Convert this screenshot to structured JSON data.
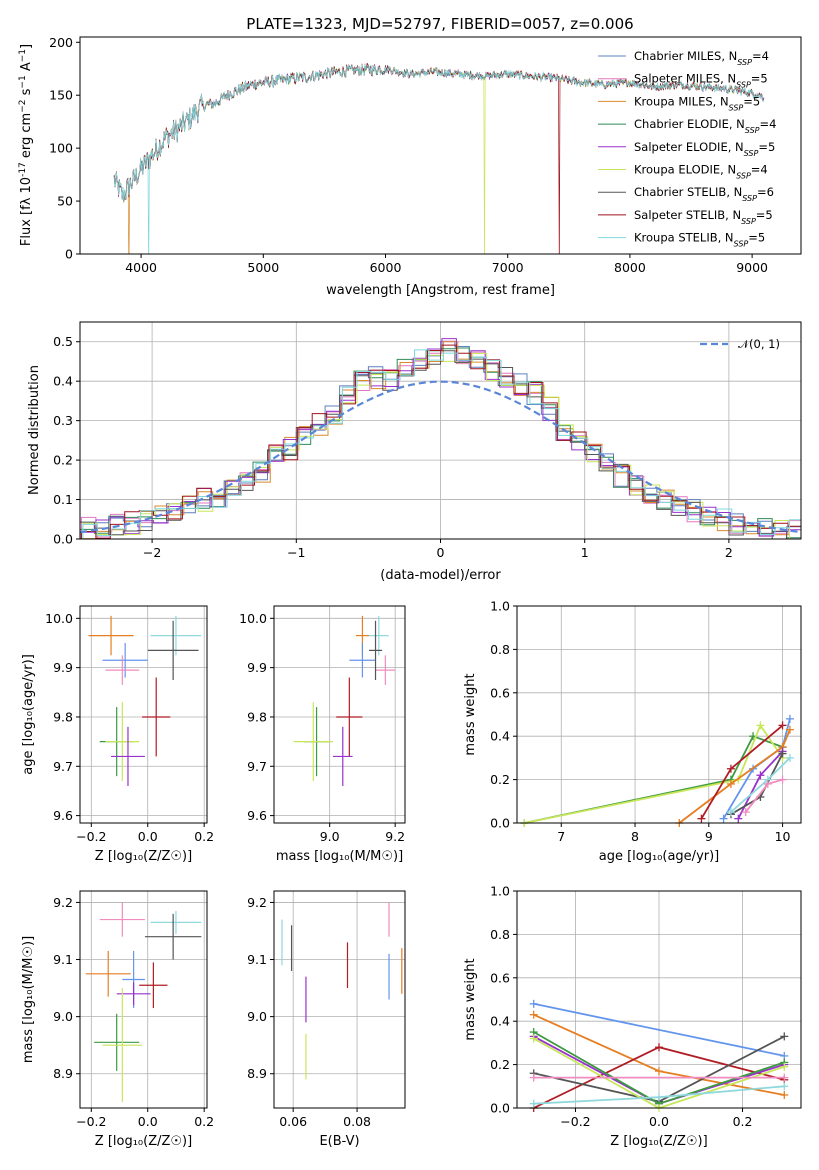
{
  "title": "PLATE=1323, MJD=52797, FIBERID=0057, z=0.006",
  "panels": {
    "spectrum": {
      "xlabel": "wavelength [Angstrom, rest frame]",
      "ylabel_main": "Flux [f",
      "ylabel_unit": "10",
      "ylabel_exp": "-17",
      "ylabel_rest": " erg cm",
      "xticks": [
        "4000",
        "5000",
        "6000",
        "7000",
        "8000",
        "9000"
      ],
      "yticks": [
        "0",
        "50",
        "100",
        "150",
        "200"
      ]
    },
    "residuals": {
      "xlabel": "(data-model)/error",
      "ylabel": "Normed distribution",
      "legend": "𝒩(0, 1)",
      "xticks": [
        "−2",
        "−1",
        "0",
        "1",
        "2"
      ],
      "yticks": [
        "0.0",
        "0.1",
        "0.2",
        "0.3",
        "0.4",
        "0.5"
      ]
    },
    "z_age": {
      "xlabel": "Z [log₁₀(Z/Z☉)]",
      "ylabel": "age  [log₁₀(age/yr)]",
      "xticks": [
        "−0.2",
        "0.0",
        "0.2"
      ],
      "yticks": [
        "9.6",
        "9.7",
        "9.8",
        "9.9",
        "10.0"
      ]
    },
    "mass_age": {
      "xlabel": "mass [log₁₀(M/M☉)]",
      "xticks": [
        "9.0",
        "9.2"
      ],
      "yticks": [
        "9.6",
        "9.7",
        "9.8",
        "9.9",
        "10.0"
      ]
    },
    "age_weight": {
      "xlabel": "age  [log₁₀(age/yr)]",
      "ylabel": "mass weight",
      "xticks": [
        "7",
        "8",
        "9",
        "10"
      ],
      "yticks": [
        "0.0",
        "0.2",
        "0.4",
        "0.6",
        "0.8",
        "1.0"
      ]
    },
    "z_mass": {
      "xlabel": "Z [log₁₀(Z/Z☉)]",
      "ylabel": "mass [log₁₀(M/M☉)]",
      "xticks": [
        "−0.2",
        "0.0",
        "0.2"
      ],
      "yticks": [
        "8.9",
        "9.0",
        "9.1",
        "9.2"
      ]
    },
    "ebv_mass": {
      "xlabel": "E(B-V)",
      "xticks": [
        "0.06",
        "0.08"
      ],
      "yticks": [
        "8.9",
        "9.0",
        "9.1",
        "9.2"
      ]
    },
    "z_weight": {
      "xlabel": "Z [log₁₀(Z/Z☉)]",
      "ylabel": "mass weight",
      "xticks": [
        "−0.2",
        "0.0",
        "0.2"
      ],
      "yticks": [
        "0.0",
        "0.2",
        "0.4",
        "0.6",
        "0.8",
        "1.0"
      ]
    }
  },
  "chart_data": [
    {
      "type": "line",
      "panel": "spectrum",
      "xlabel": "wavelength [Angstrom, rest frame]",
      "ylabel": "Flux [fλ 10^-17 erg cm^-2 s^-1 A^-1]",
      "xlim": [
        3500,
        9400
      ],
      "ylim": [
        0,
        205
      ],
      "envelope": {
        "wavelength": [
          3780,
          3850,
          3950,
          4000,
          4100,
          4200,
          4300,
          4400,
          4500,
          4600,
          4700,
          4800,
          4900,
          5000,
          5200,
          5400,
          5600,
          5800,
          6000,
          6200,
          6400,
          6600,
          6800,
          7000,
          7200,
          7400,
          7600,
          7800,
          8000,
          8200,
          8400,
          8600,
          8800,
          9000,
          9100
        ],
        "flux": [
          70,
          55,
          72,
          80,
          95,
          110,
          118,
          128,
          140,
          142,
          150,
          155,
          160,
          162,
          165,
          168,
          172,
          174,
          175,
          170,
          172,
          170,
          168,
          170,
          168,
          166,
          162,
          160,
          162,
          158,
          160,
          158,
          156,
          152,
          148
        ]
      },
      "dropouts": [
        {
          "model": "Kroupa ELODIE",
          "wavelength": 6810
        },
        {
          "model": "Salpeter STELIB",
          "wavelength": 7420
        },
        {
          "model": "Kroupa MILES",
          "wavelength": 3900
        },
        {
          "model": "Kroupa STELIB",
          "wavelength": 4060
        }
      ],
      "legend": [
        {
          "name": "Chabrier MILES",
          "nssp": "4",
          "color": "#5f7fbf"
        },
        {
          "name": "Salpeter MILES",
          "nssp": "5",
          "color": "#e377c2"
        },
        {
          "name": "Kroupa MILES",
          "nssp": "5",
          "color": "#d88a2e"
        },
        {
          "name": "Chabrier ELODIE",
          "nssp": "4",
          "color": "#2e8b57"
        },
        {
          "name": "Salpeter ELODIE",
          "nssp": "5",
          "color": "#9932cc"
        },
        {
          "name": "Kroupa ELODIE",
          "nssp": "4",
          "color": "#c8e65a"
        },
        {
          "name": "Chabrier STELIB",
          "nssp": "6",
          "color": "#555555"
        },
        {
          "name": "Salpeter STELIB",
          "nssp": "5",
          "color": "#a0141e"
        },
        {
          "name": "Kroupa STELIB",
          "nssp": "5",
          "color": "#7fd8de"
        }
      ]
    },
    {
      "type": "area",
      "panel": "residuals",
      "xlim": [
        -2.5,
        2.5
      ],
      "ylim": [
        0,
        0.55
      ],
      "grid": true,
      "legend_position": "top-right",
      "histogram_bins": [
        -2.5,
        -2.4,
        -2.3,
        -2.2,
        -2.1,
        -2.0,
        -1.9,
        -1.8,
        -1.7,
        -1.6,
        -1.5,
        -1.4,
        -1.3,
        -1.2,
        -1.1,
        -1.0,
        -0.9,
        -0.8,
        -0.7,
        -0.6,
        -0.5,
        -0.4,
        -0.3,
        -0.2,
        -0.1,
        0.0,
        0.1,
        0.2,
        0.3,
        0.4,
        0.5,
        0.6,
        0.7,
        0.8,
        0.9,
        1.0,
        1.1,
        1.2,
        1.3,
        1.4,
        1.5,
        1.6,
        1.7,
        1.8,
        1.9,
        2.0,
        2.1,
        2.2,
        2.3,
        2.4
      ],
      "histogram_mean": [
        0.03,
        0.03,
        0.04,
        0.04,
        0.05,
        0.06,
        0.07,
        0.09,
        0.1,
        0.1,
        0.12,
        0.15,
        0.17,
        0.21,
        0.23,
        0.26,
        0.29,
        0.31,
        0.36,
        0.4,
        0.41,
        0.4,
        0.44,
        0.45,
        0.46,
        0.48,
        0.47,
        0.46,
        0.43,
        0.41,
        0.39,
        0.37,
        0.33,
        0.27,
        0.25,
        0.22,
        0.19,
        0.16,
        0.14,
        0.12,
        0.1,
        0.08,
        0.07,
        0.06,
        0.05,
        0.04,
        0.03,
        0.03,
        0.02,
        0.02
      ],
      "gaussian": {
        "name": "𝒩(0, 1)",
        "mu": 0,
        "sigma": 1
      }
    },
    {
      "type": "scatter",
      "panel": "z_age",
      "xlim": [
        -0.24,
        0.21
      ],
      "ylim": [
        9.585,
        10.025
      ],
      "points": [
        {
          "x": -0.13,
          "y": 9.965,
          "xerr": 0.08,
          "yerr": 0.04,
          "color": "#e67e22"
        },
        {
          "x": -0.08,
          "y": 9.915,
          "xerr": 0.08,
          "yerr": 0.035,
          "color": "#6495ed"
        },
        {
          "x": -0.09,
          "y": 9.895,
          "xerr": 0.06,
          "yerr": 0.03,
          "color": "#f08cbf"
        },
        {
          "x": 0.1,
          "y": 9.965,
          "xerr": 0.09,
          "yerr": 0.04,
          "color": "#8fd8dc"
        },
        {
          "x": 0.09,
          "y": 9.935,
          "xerr": 0.09,
          "yerr": 0.06,
          "color": "#555555"
        },
        {
          "x": 0.03,
          "y": 9.8,
          "xerr": 0.05,
          "yerr": 0.08,
          "color": "#b01c24"
        },
        {
          "x": -0.11,
          "y": 9.75,
          "xerr": 0.06,
          "yerr": 0.07,
          "color": "#3d9a40"
        },
        {
          "x": -0.09,
          "y": 9.75,
          "xerr": 0.06,
          "yerr": 0.08,
          "color": "#c8e65a"
        },
        {
          "x": -0.07,
          "y": 9.72,
          "xerr": 0.06,
          "yerr": 0.06,
          "color": "#9932cc"
        }
      ]
    },
    {
      "type": "scatter",
      "panel": "mass_age",
      "xlim": [
        8.83,
        9.23
      ],
      "ylim": [
        9.585,
        10.025
      ],
      "points": [
        {
          "x": 9.1,
          "y": 9.965,
          "xerr": 0.02,
          "yerr": 0.04,
          "color": "#e67e22"
        },
        {
          "x": 9.1,
          "y": 9.915,
          "xerr": 0.04,
          "yerr": 0.035,
          "color": "#6495ed"
        },
        {
          "x": 9.17,
          "y": 9.895,
          "xerr": 0.03,
          "yerr": 0.03,
          "color": "#f08cbf"
        },
        {
          "x": 9.15,
          "y": 9.965,
          "xerr": 0.03,
          "yerr": 0.04,
          "color": "#8fd8dc"
        },
        {
          "x": 9.14,
          "y": 9.935,
          "xerr": 0.02,
          "yerr": 0.06,
          "color": "#555555"
        },
        {
          "x": 9.06,
          "y": 9.8,
          "xerr": 0.04,
          "yerr": 0.08,
          "color": "#b01c24"
        },
        {
          "x": 8.96,
          "y": 9.75,
          "xerr": 0.04,
          "yerr": 0.07,
          "color": "#3d9a40"
        },
        {
          "x": 8.95,
          "y": 9.75,
          "xerr": 0.06,
          "yerr": 0.08,
          "color": "#c8e65a"
        },
        {
          "x": 9.04,
          "y": 9.72,
          "xerr": 0.03,
          "yerr": 0.06,
          "color": "#9932cc"
        }
      ]
    },
    {
      "type": "line",
      "panel": "age_weight",
      "xlim": [
        6.4,
        10.25
      ],
      "ylim": [
        0,
        1.0
      ],
      "series": [
        {
          "color": "#3d9a40",
          "x": [
            6.5,
            9.3,
            9.6,
            10.0
          ],
          "y": [
            0.0,
            0.2,
            0.4,
            0.35
          ]
        },
        {
          "color": "#c8e65a",
          "x": [
            6.5,
            9.4,
            9.7,
            10.0
          ],
          "y": [
            0.0,
            0.2,
            0.45,
            0.3
          ]
        },
        {
          "color": "#6495ed",
          "x": [
            9.2,
            9.6,
            10.0,
            10.1
          ],
          "y": [
            0.02,
            0.25,
            0.35,
            0.48
          ]
        },
        {
          "color": "#e67e22",
          "x": [
            8.6,
            9.3,
            10.0,
            10.1
          ],
          "y": [
            0.0,
            0.18,
            0.35,
            0.43
          ]
        },
        {
          "color": "#b01c24",
          "x": [
            8.9,
            9.3,
            10.0
          ],
          "y": [
            0.02,
            0.25,
            0.45
          ]
        },
        {
          "color": "#9932cc",
          "x": [
            9.4,
            9.7,
            10.0
          ],
          "y": [
            0.02,
            0.22,
            0.33
          ]
        },
        {
          "color": "#555555",
          "x": [
            9.3,
            9.7,
            10.0
          ],
          "y": [
            0.04,
            0.12,
            0.32
          ]
        },
        {
          "color": "#8fd8dc",
          "x": [
            9.3,
            9.8,
            10.1
          ],
          "y": [
            0.05,
            0.2,
            0.3
          ]
        },
        {
          "color": "#f08cbf",
          "x": [
            9.5,
            9.8,
            10.0
          ],
          "y": [
            0.05,
            0.18,
            0.2
          ]
        }
      ]
    },
    {
      "type": "scatter",
      "panel": "z_mass",
      "xlim": [
        -0.24,
        0.21
      ],
      "ylim": [
        8.84,
        9.22
      ],
      "points": [
        {
          "x": -0.09,
          "y": 9.17,
          "xerr": 0.08,
          "yerr": 0.03,
          "color": "#f08cbf"
        },
        {
          "x": 0.1,
          "y": 9.165,
          "xerr": 0.09,
          "yerr": 0.02,
          "color": "#8fd8dc"
        },
        {
          "x": 0.09,
          "y": 9.14,
          "xerr": 0.1,
          "yerr": 0.04,
          "color": "#555555"
        },
        {
          "x": -0.14,
          "y": 9.075,
          "xerr": 0.08,
          "yerr": 0.04,
          "color": "#e67e22"
        },
        {
          "x": -0.05,
          "y": 9.065,
          "xerr": 0.04,
          "yerr": 0.05,
          "color": "#6495ed"
        },
        {
          "x": 0.02,
          "y": 9.055,
          "xerr": 0.05,
          "yerr": 0.04,
          "color": "#b01c24"
        },
        {
          "x": -0.05,
          "y": 9.04,
          "xerr": 0.06,
          "yerr": 0.02,
          "color": "#9932cc"
        },
        {
          "x": -0.11,
          "y": 8.955,
          "xerr": 0.08,
          "yerr": 0.05,
          "color": "#3d9a40"
        },
        {
          "x": -0.09,
          "y": 8.95,
          "xerr": 0.07,
          "yerr": 0.1,
          "color": "#c8e65a"
        }
      ]
    },
    {
      "type": "scatter",
      "panel": "ebv_mass",
      "xlim": [
        0.054,
        0.095
      ],
      "ylim": [
        8.84,
        9.22
      ],
      "points": [
        {
          "x": 0.0565,
          "y": 9.13,
          "xerr": 0,
          "yerr": 0.04,
          "color": "#8fd8dc"
        },
        {
          "x": 0.0595,
          "y": 9.12,
          "xerr": 0,
          "yerr": 0.04,
          "color": "#555555"
        },
        {
          "x": 0.064,
          "y": 9.03,
          "xerr": 0,
          "yerr": 0.04,
          "color": "#9932cc"
        },
        {
          "x": 0.064,
          "y": 8.93,
          "xerr": 0,
          "yerr": 0.04,
          "color": "#c8e65a"
        },
        {
          "x": 0.077,
          "y": 9.09,
          "xerr": 0,
          "yerr": 0.04,
          "color": "#b01c24"
        },
        {
          "x": 0.09,
          "y": 9.17,
          "xerr": 0,
          "yerr": 0.03,
          "color": "#f08cbf"
        },
        {
          "x": 0.09,
          "y": 9.07,
          "xerr": 0,
          "yerr": 0.04,
          "color": "#6495ed"
        },
        {
          "x": 0.094,
          "y": 9.08,
          "xerr": 0,
          "yerr": 0.04,
          "color": "#e67e22"
        }
      ]
    },
    {
      "type": "line",
      "panel": "z_weight",
      "xlim": [
        -0.34,
        0.34
      ],
      "ylim": [
        0,
        1.0
      ],
      "series": [
        {
          "color": "#6495ed",
          "x": [
            -0.3,
            0.3
          ],
          "y": [
            0.48,
            0.24
          ]
        },
        {
          "color": "#e67e22",
          "x": [
            -0.3,
            0.0,
            0.3
          ],
          "y": [
            0.43,
            0.17,
            0.06
          ]
        },
        {
          "color": "#b01c24",
          "x": [
            -0.3,
            0.0,
            0.3
          ],
          "y": [
            0.0,
            0.28,
            0.13
          ]
        },
        {
          "color": "#555555",
          "x": [
            -0.3,
            0.0,
            0.3
          ],
          "y": [
            0.16,
            0.03,
            0.33
          ]
        },
        {
          "color": "#9932cc",
          "x": [
            -0.3,
            0.0,
            0.3
          ],
          "y": [
            0.33,
            0.02,
            0.2
          ]
        },
        {
          "color": "#3d9a40",
          "x": [
            -0.3,
            0.0,
            0.3
          ],
          "y": [
            0.35,
            0.02,
            0.21
          ]
        },
        {
          "color": "#c8e65a",
          "x": [
            -0.3,
            0.0,
            0.3
          ],
          "y": [
            0.32,
            0.0,
            0.19
          ]
        },
        {
          "color": "#8fd8dc",
          "x": [
            -0.3,
            0.0,
            0.3
          ],
          "y": [
            0.02,
            0.05,
            0.1
          ]
        },
        {
          "color": "#f08cbf",
          "x": [
            -0.3,
            0.3
          ],
          "y": [
            0.14,
            0.14
          ]
        }
      ]
    }
  ]
}
